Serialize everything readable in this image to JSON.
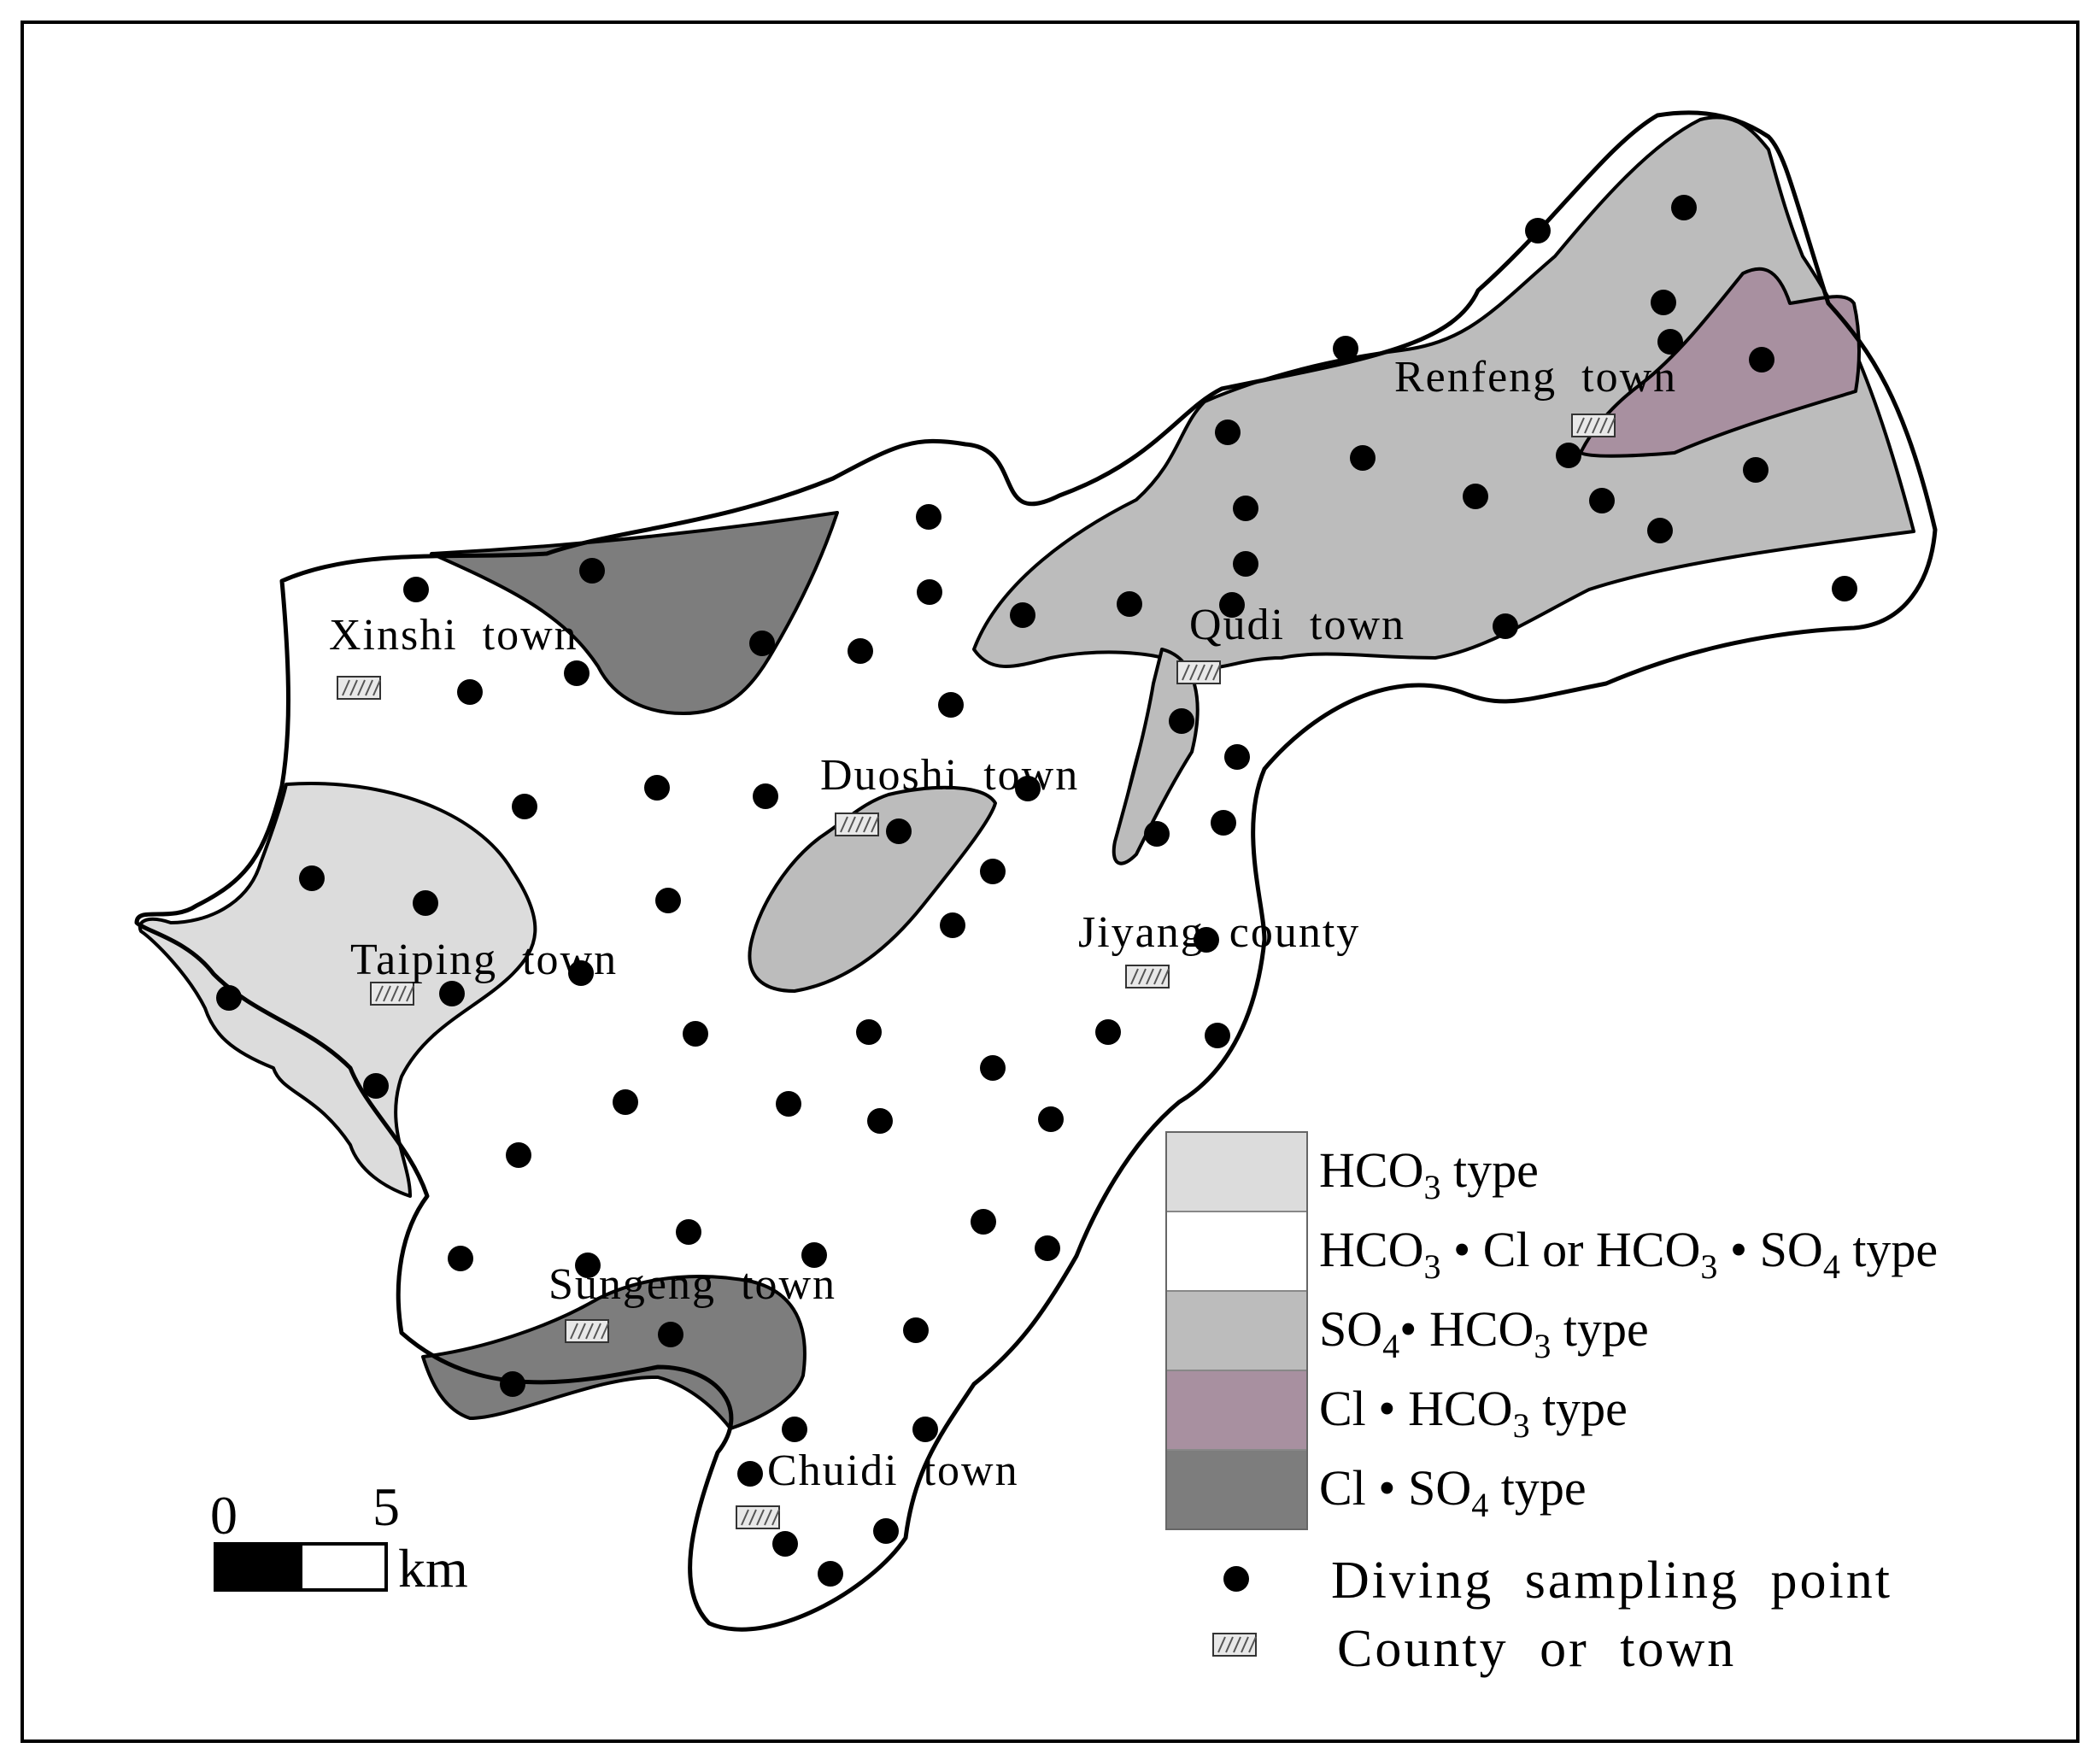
{
  "legend": {
    "items": [
      {
        "id": "hco3",
        "color": "#dcdcdc",
        "parts": [
          [
            "HCO",
            "3",
            " type"
          ]
        ]
      },
      {
        "id": "hco3-cl-so4",
        "color": "#ffffff",
        "parts": [
          [
            "HCO",
            "3",
            " • Cl or HCO"
          ],
          [
            "",
            "3",
            " • SO"
          ],
          [
            "",
            "4",
            " type"
          ]
        ]
      },
      {
        "id": "so4-hco3",
        "color": "#bcbcbc",
        "parts": [
          [
            "SO",
            "4",
            "• HCO"
          ],
          [
            "",
            "3",
            "  type"
          ]
        ]
      },
      {
        "id": "cl-hco3",
        "color": "#a890a0",
        "parts": [
          [
            "Cl • HCO",
            "3",
            "  type"
          ]
        ]
      },
      {
        "id": "cl-so4",
        "color": "#7d7d7d",
        "parts": [
          [
            "Cl • SO",
            "4",
            " type"
          ]
        ]
      }
    ],
    "point_label": "Diving sampling point",
    "town_label": "County or town"
  },
  "towns": [
    {
      "name": "Xinshi  town"
    },
    {
      "name": "Qudi  town"
    },
    {
      "name": "Renfeng  town"
    },
    {
      "name": "Duoshi  town"
    },
    {
      "name": "Jiyang  county"
    },
    {
      "name": "Taiping  town"
    },
    {
      "name": "Sungeng  town"
    },
    {
      "name": "Chuidi  town"
    }
  ],
  "scale": {
    "zero": "0",
    "five": "5",
    "unit": "km"
  },
  "sampling_point_count": 79,
  "colors": {
    "outline": "#000000",
    "point": "#000000"
  }
}
